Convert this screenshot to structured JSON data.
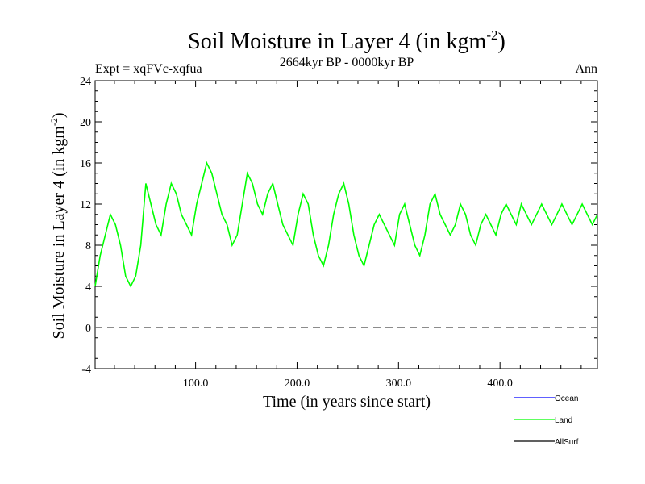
{
  "chart_data": {
    "type": "line",
    "title": "Soil Moisture in Layer 4 (in kgm",
    "title_sup": "-2",
    "title_close": ")",
    "subtitle": "2664kyr BP - 0000kyr BP",
    "left_label": "Expt = xqFVc-xqfua",
    "right_label": "Ann",
    "xlabel": "Time (in years since start)",
    "ylabel": "Soil Moisture in Layer 4 (in kgm",
    "ylabel_sup": "-2",
    "ylabel_close": ")",
    "xlim": [
      1,
      496
    ],
    "ylim": [
      -4,
      24
    ],
    "x_ticks": [
      100,
      200,
      300,
      400
    ],
    "x_tick_labels": [
      "100.0",
      "200.0",
      "300.0",
      "400.0"
    ],
    "y_ticks": [
      -4,
      0,
      4,
      8,
      12,
      16,
      20,
      24
    ],
    "y_tick_labels": [
      "-4",
      "0",
      "4",
      "8",
      "12",
      "16",
      "20",
      "24"
    ],
    "reference_line": 0,
    "series": [
      {
        "name": "Ocean",
        "color": "#0000ff",
        "values": []
      },
      {
        "name": "Land",
        "color": "#00ff00",
        "x_start": 1,
        "x_step": 5,
        "values": [
          4,
          7,
          9,
          11,
          10,
          8,
          5,
          4,
          5,
          8,
          14,
          12,
          10,
          9,
          12,
          14,
          13,
          11,
          10,
          9,
          12,
          14,
          16,
          15,
          13,
          11,
          10,
          8,
          9,
          12,
          15,
          14,
          12,
          11,
          13,
          14,
          12,
          10,
          9,
          8,
          11,
          13,
          12,
          9,
          7,
          6,
          8,
          11,
          13,
          14,
          12,
          9,
          7,
          6,
          8,
          10,
          11,
          10,
          9,
          8,
          11,
          12,
          10,
          8,
          7,
          9,
          12,
          13,
          11,
          10,
          9,
          10,
          12,
          11,
          9,
          8,
          10,
          11,
          10,
          9,
          11,
          12,
          11,
          10,
          12,
          11,
          10,
          11,
          12,
          11,
          10,
          11,
          12,
          11,
          10,
          11,
          12,
          11,
          10,
          11
        ]
      },
      {
        "name": "AllSurf",
        "color": "#000000",
        "values": []
      }
    ],
    "legend_position": "bottom-right"
  }
}
